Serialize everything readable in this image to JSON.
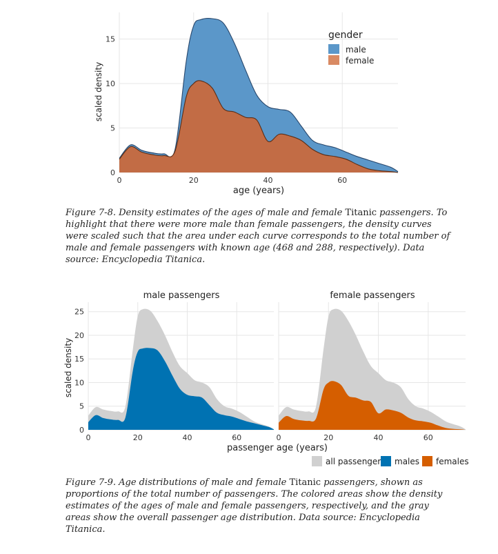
{
  "figure1": {
    "caption_before": "Figure 7-8. Density estimates of the ages of male and female ",
    "caption_upright": "Titanic",
    "caption_after": " passengers. To highlight that there were more male than female passengers, the density curves were scaled such that the area under each curve corresponds to the total number of male and female passengers with known age (468 and 288, respectively). Data source: Encyclopedia Titanica.",
    "colors": {
      "male": "#56B4E9",
      "female": "#E69F00",
      "male_fill": "#5b97c9",
      "female_fill": "#c8693e",
      "grid": "#e6e6e6"
    }
  },
  "figure2": {
    "caption_before": "Figure 7-9. Age distributions of male and female ",
    "caption_upright": "Titanic",
    "caption_after": " passengers, shown as proportions of the total number of passengers. The colored areas show the density estimates of the ages of male and female passengers, respectively, and the gray areas show the overall passenger age distribution. Data source: Encyclopedia Titanica.",
    "colors": {
      "all": "#d0d0d0",
      "males": "#0072B2",
      "females": "#D55E00"
    }
  },
  "chart_data": [
    {
      "type": "area",
      "xlabel": "age (years)",
      "ylabel": "scaled density",
      "xlim": [
        0,
        75
      ],
      "ylim": [
        0,
        18
      ],
      "xticks": [
        0,
        20,
        40,
        60
      ],
      "yticks": [
        0,
        5,
        10,
        15
      ],
      "legend": {
        "title": "gender",
        "position": "top-right",
        "items": [
          "male",
          "female"
        ]
      },
      "grid": true,
      "x": [
        0,
        3,
        6,
        9,
        12,
        15,
        18,
        20,
        22,
        25,
        28,
        31,
        34,
        37,
        40,
        43,
        46,
        49,
        52,
        55,
        58,
        61,
        64,
        67,
        70,
        73,
        75
      ],
      "series": [
        {
          "name": "male",
          "values": [
            1.6,
            3.1,
            2.5,
            2.2,
            2.1,
            2.6,
            12.5,
            16.5,
            17.2,
            17.3,
            16.8,
            14.5,
            11.5,
            8.7,
            7.4,
            7.1,
            6.8,
            5.2,
            3.6,
            3.1,
            2.8,
            2.3,
            1.8,
            1.4,
            1.0,
            0.6,
            0.1
          ]
        },
        {
          "name": "female",
          "values": [
            1.5,
            2.9,
            2.3,
            2.0,
            1.9,
            2.4,
            8.5,
            10.0,
            10.3,
            9.5,
            7.2,
            6.8,
            6.2,
            5.9,
            3.5,
            4.3,
            4.1,
            3.6,
            2.6,
            2.0,
            1.8,
            1.5,
            0.9,
            0.4,
            0.2,
            0.1,
            0.0
          ]
        }
      ]
    },
    {
      "type": "area",
      "panel": "male passengers",
      "xlabel": "passenger age (years)",
      "ylabel": "scaled density",
      "xlim": [
        0,
        75
      ],
      "ylim": [
        0,
        27
      ],
      "xticks": [
        0,
        20,
        40,
        60
      ],
      "yticks": [
        0,
        5,
        10,
        15,
        20,
        25
      ],
      "legend": {
        "position": "bottom-right",
        "items": [
          "all passengers",
          "males",
          "females"
        ]
      },
      "grid": true,
      "x": [
        0,
        3,
        6,
        9,
        12,
        15,
        18,
        20,
        22,
        25,
        28,
        31,
        34,
        37,
        40,
        43,
        46,
        49,
        52,
        55,
        58,
        61,
        64,
        67,
        70,
        73,
        75
      ],
      "series": [
        {
          "name": "all passengers",
          "values": [
            3.0,
            4.8,
            4.3,
            4.0,
            3.9,
            4.9,
            17.0,
            24.0,
            25.5,
            25.2,
            23.0,
            20.0,
            16.5,
            13.5,
            12.0,
            10.5,
            10.0,
            9.0,
            6.5,
            5.0,
            4.5,
            3.8,
            2.8,
            1.8,
            1.2,
            0.7,
            0.1
          ]
        },
        {
          "name": "males",
          "values": [
            1.6,
            3.1,
            2.5,
            2.2,
            2.1,
            2.6,
            12.5,
            16.5,
            17.2,
            17.3,
            16.8,
            14.5,
            11.5,
            8.7,
            7.4,
            7.1,
            6.8,
            5.2,
            3.6,
            3.1,
            2.8,
            2.3,
            1.8,
            1.4,
            1.0,
            0.6,
            0.1
          ]
        }
      ]
    },
    {
      "type": "area",
      "panel": "female passengers",
      "xlabel": "passenger age (years)",
      "xlim": [
        0,
        75
      ],
      "ylim": [
        0,
        27
      ],
      "xticks": [
        0,
        20,
        40,
        60
      ],
      "grid": true,
      "x": [
        0,
        3,
        6,
        9,
        12,
        15,
        18,
        20,
        22,
        25,
        28,
        31,
        34,
        37,
        40,
        43,
        46,
        49,
        52,
        55,
        58,
        61,
        64,
        67,
        70,
        73,
        75
      ],
      "series": [
        {
          "name": "all passengers",
          "values": [
            3.0,
            4.8,
            4.3,
            4.0,
            3.9,
            4.9,
            17.0,
            24.0,
            25.5,
            25.2,
            23.0,
            20.0,
            16.5,
            13.5,
            12.0,
            10.5,
            10.0,
            9.0,
            6.5,
            5.0,
            4.5,
            3.8,
            2.8,
            1.8,
            1.2,
            0.7,
            0.1
          ]
        },
        {
          "name": "females",
          "values": [
            1.5,
            2.9,
            2.3,
            2.0,
            1.9,
            2.4,
            8.5,
            10.0,
            10.3,
            9.5,
            7.2,
            6.8,
            6.2,
            5.9,
            3.5,
            4.3,
            4.1,
            3.6,
            2.6,
            2.0,
            1.8,
            1.5,
            0.9,
            0.4,
            0.2,
            0.1,
            0.0
          ]
        }
      ]
    }
  ]
}
